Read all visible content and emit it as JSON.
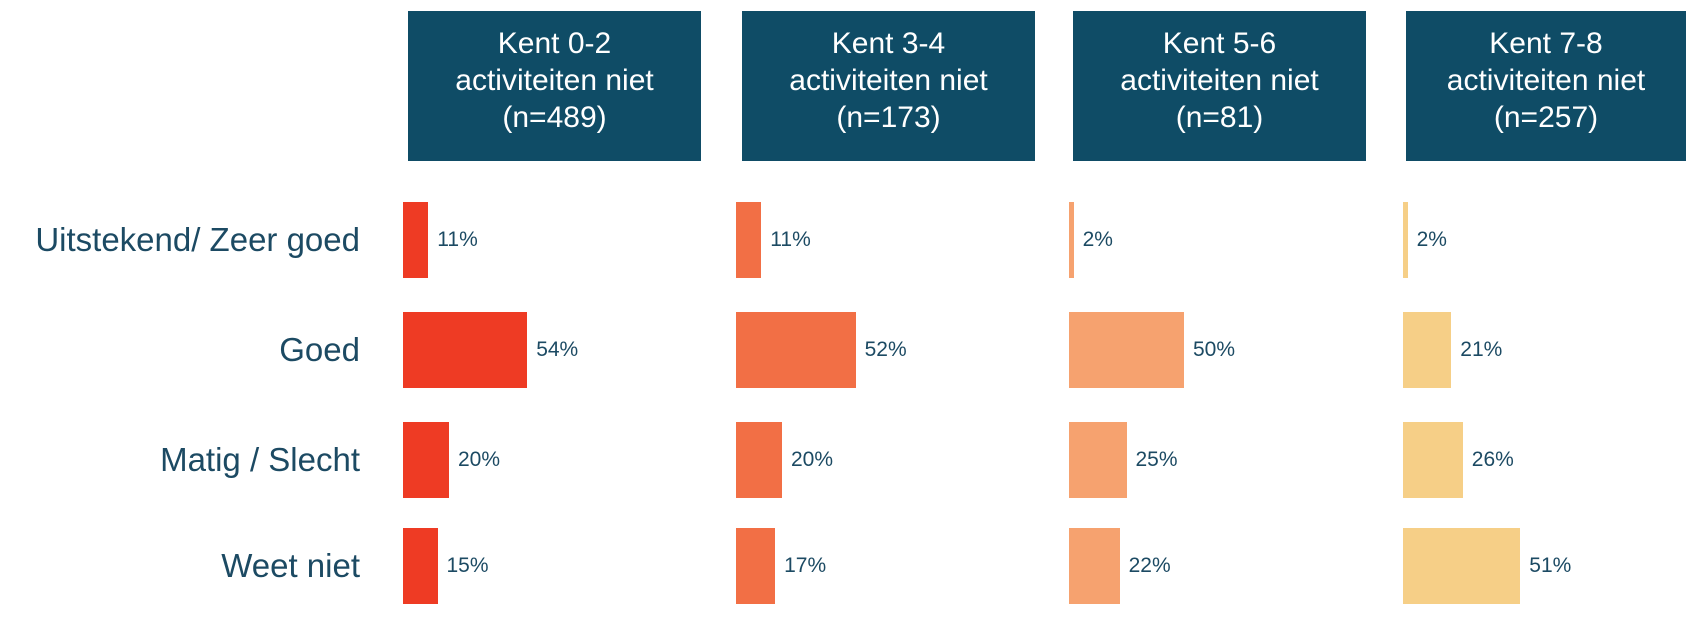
{
  "chart_data": [
    {
      "type": "bar",
      "title": "Kent 0-2\nactiviteiten niet\n(n=489)",
      "categories": [
        "Uitstekend/ Zeer goed",
        "Goed",
        "Matig / Slecht",
        "Weet niet"
      ],
      "values": [
        11,
        54,
        20,
        15
      ],
      "value_labels": [
        "11%",
        "54%",
        "20%",
        "15%"
      ],
      "color": "#ee3b24"
    },
    {
      "type": "bar",
      "title": "Kent 3-4\nactiviteiten niet\n(n=173)",
      "values": [
        11,
        52,
        20,
        17
      ],
      "value_labels": [
        "11%",
        "52%",
        "20%",
        "17%"
      ],
      "color": "#f26f45"
    },
    {
      "type": "bar",
      "title": "Kent 5-6\nactiviteiten niet\n(n=81)",
      "values": [
        2,
        50,
        25,
        22
      ],
      "value_labels": [
        "2%",
        "50%",
        "25%",
        "22%"
      ],
      "color": "#f6a26f"
    },
    {
      "type": "bar",
      "title": "Kent 7-8\nactiviteiten niet\n(n=257)",
      "values": [
        2,
        21,
        26,
        51
      ],
      "value_labels": [
        "2%",
        "21%",
        "26%",
        "51%"
      ],
      "color": "#f6cf87"
    }
  ]
}
